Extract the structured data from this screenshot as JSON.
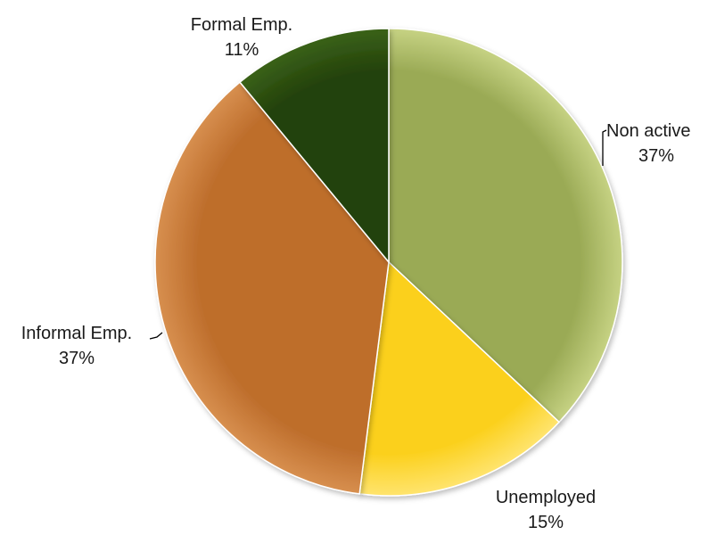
{
  "chart_data": {
    "type": "pie",
    "start_angle_deg": 0,
    "direction": "clockwise",
    "slices": [
      {
        "label": "Non active",
        "pct_label": "37%",
        "value": 37,
        "color": "#9aaa55",
        "color_light": "#c6d283"
      },
      {
        "label": "Unemployed",
        "pct_label": "15%",
        "value": 15,
        "color": "#fbd01c",
        "color_light": "#ffe46e"
      },
      {
        "label": "Informal Emp.",
        "pct_label": "37%",
        "value": 37,
        "color": "#be6e2c",
        "color_light": "#d78f4f"
      },
      {
        "label": "Formal Emp.",
        "pct_label": "11%",
        "value": 11,
        "color": "#24420b",
        "color_light": "#3a6218"
      }
    ]
  }
}
